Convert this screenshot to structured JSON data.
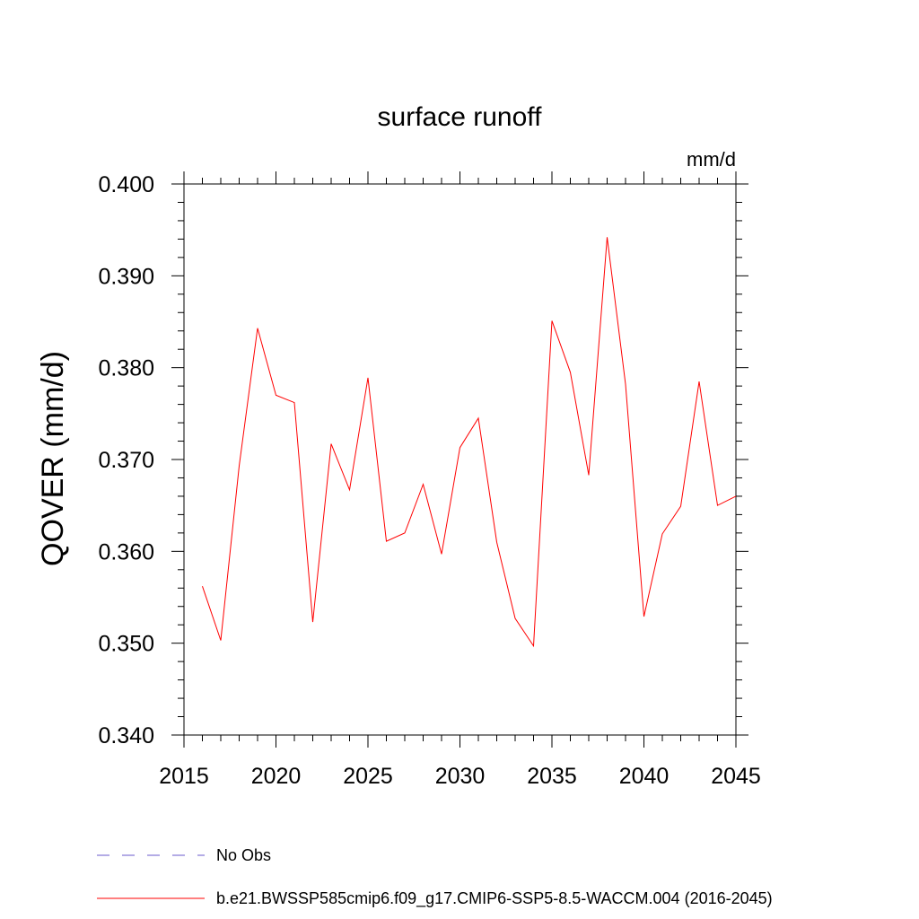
{
  "chart_data": {
    "type": "line",
    "title": "surface runoff",
    "units_label": "mm/d",
    "ylabel": "QOVER  (mm/d)",
    "xlabel": "",
    "xlim": [
      2015,
      2045
    ],
    "ylim": [
      0.34,
      0.4
    ],
    "x_ticks": [
      2015,
      2020,
      2025,
      2030,
      2035,
      2040,
      2045
    ],
    "x_tick_labels": [
      "2015",
      "2020",
      "2025",
      "2030",
      "2035",
      "2040",
      "2045"
    ],
    "y_ticks": [
      0.34,
      0.35,
      0.36,
      0.37,
      0.38,
      0.39,
      0.4
    ],
    "y_tick_labels": [
      "0.340",
      "0.350",
      "0.360",
      "0.370",
      "0.380",
      "0.390",
      "0.400"
    ],
    "grid": false,
    "legend_position": "bottom",
    "legend": [
      {
        "label": "No Obs",
        "color": "#6a5acd",
        "dash": true
      },
      {
        "label": "b.e21.BWSSP585cmip6.f09_g17.CMIP6-SSP5-8.5-WACCM.004 (2016-2045)",
        "color": "#ff0000",
        "dash": false
      }
    ],
    "series": [
      {
        "name": "b.e21.BWSSP585cmip6.f09_g17.CMIP6-SSP5-8.5-WACCM.004 (2016-2045)",
        "color": "#ff0000",
        "x": [
          2016,
          2017,
          2018,
          2019,
          2020,
          2021,
          2022,
          2023,
          2024,
          2025,
          2026,
          2027,
          2028,
          2029,
          2030,
          2031,
          2032,
          2033,
          2034,
          2035,
          2036,
          2037,
          2038,
          2039,
          2040,
          2041,
          2042,
          2043,
          2044,
          2045
        ],
        "y": [
          0.3562,
          0.3503,
          0.3693,
          0.3843,
          0.377,
          0.3762,
          0.3523,
          0.3717,
          0.3667,
          0.3789,
          0.3611,
          0.362,
          0.3673,
          0.3597,
          0.3713,
          0.3745,
          0.361,
          0.3527,
          0.3497,
          0.3851,
          0.3795,
          0.3683,
          0.3942,
          0.3782,
          0.3529,
          0.3619,
          0.3649,
          0.3785,
          0.365,
          0.366
        ]
      }
    ]
  }
}
